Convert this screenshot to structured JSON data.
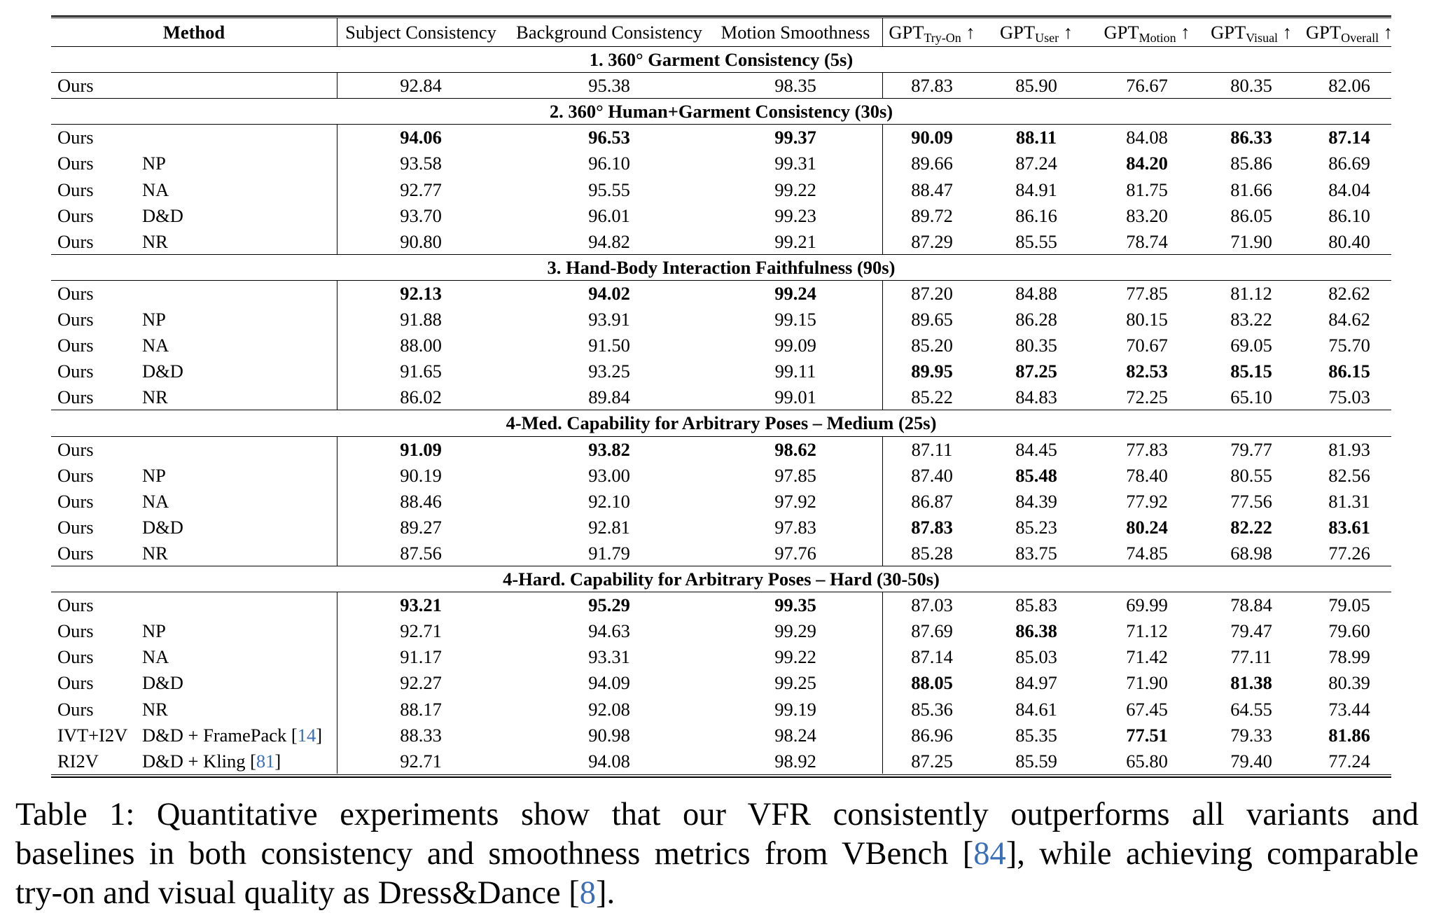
{
  "table": {
    "headers": {
      "method": "Method",
      "subject": "Subject Consistency",
      "background": "Background Consistency",
      "motion_smooth": "Motion Smoothness",
      "gpt_prefix": "GPT",
      "tryon_sub": "Try-On",
      "user_sub": "User",
      "motion_sub": "Motion",
      "visual_sub": "Visual",
      "overall_sub": "Overall",
      "arrow": "↑"
    },
    "sections": [
      {
        "title": "1. 360° Garment Consistency (5s)",
        "rows": [
          {
            "m1": "Ours",
            "m2": "",
            "v": [
              "92.84",
              "95.38",
              "98.35",
              "87.83",
              "85.90",
              "76.67",
              "80.35",
              "82.06"
            ],
            "b": []
          }
        ]
      },
      {
        "title": "2. 360° Human+Garment Consistency (30s)",
        "rows": [
          {
            "m1": "Ours",
            "m2": "",
            "v": [
              "94.06",
              "96.53",
              "99.37",
              "90.09",
              "88.11",
              "84.08",
              "86.33",
              "87.14"
            ],
            "b": [
              0,
              1,
              2,
              3,
              4,
              6,
              7
            ]
          },
          {
            "m1": "Ours",
            "m2": "NP",
            "v": [
              "93.58",
              "96.10",
              "99.31",
              "89.66",
              "87.24",
              "84.20",
              "85.86",
              "86.69"
            ],
            "b": [
              5
            ]
          },
          {
            "m1": "Ours",
            "m2": "NA",
            "v": [
              "92.77",
              "95.55",
              "99.22",
              "88.47",
              "84.91",
              "81.75",
              "81.66",
              "84.04"
            ],
            "b": []
          },
          {
            "m1": "Ours",
            "m2": "D&D",
            "v": [
              "93.70",
              "96.01",
              "99.23",
              "89.72",
              "86.16",
              "83.20",
              "86.05",
              "86.10"
            ],
            "b": []
          },
          {
            "m1": "Ours",
            "m2": "NR",
            "v": [
              "90.80",
              "94.82",
              "99.21",
              "87.29",
              "85.55",
              "78.74",
              "71.90",
              "80.40"
            ],
            "b": []
          }
        ]
      },
      {
        "title": "3. Hand-Body Interaction Faithfulness (90s)",
        "rows": [
          {
            "m1": "Ours",
            "m2": "",
            "v": [
              "92.13",
              "94.02",
              "99.24",
              "87.20",
              "84.88",
              "77.85",
              "81.12",
              "82.62"
            ],
            "b": [
              0,
              1,
              2
            ]
          },
          {
            "m1": "Ours",
            "m2": "NP",
            "v": [
              "91.88",
              "93.91",
              "99.15",
              "89.65",
              "86.28",
              "80.15",
              "83.22",
              "84.62"
            ],
            "b": []
          },
          {
            "m1": "Ours",
            "m2": "NA",
            "v": [
              "88.00",
              "91.50",
              "99.09",
              "85.20",
              "80.35",
              "70.67",
              "69.05",
              "75.70"
            ],
            "b": []
          },
          {
            "m1": "Ours",
            "m2": "D&D",
            "v": [
              "91.65",
              "93.25",
              "99.11",
              "89.95",
              "87.25",
              "82.53",
              "85.15",
              "86.15"
            ],
            "b": [
              3,
              4,
              5,
              6,
              7
            ]
          },
          {
            "m1": "Ours",
            "m2": "NR",
            "v": [
              "86.02",
              "89.84",
              "99.01",
              "85.22",
              "84.83",
              "72.25",
              "65.10",
              "75.03"
            ],
            "b": []
          }
        ]
      },
      {
        "title": "4-Med. Capability for Arbitrary Poses – Medium (25s)",
        "rows": [
          {
            "m1": "Ours",
            "m2": "",
            "v": [
              "91.09",
              "93.82",
              "98.62",
              "87.11",
              "84.45",
              "77.83",
              "79.77",
              "81.93"
            ],
            "b": [
              0,
              1,
              2
            ]
          },
          {
            "m1": "Ours",
            "m2": "NP",
            "v": [
              "90.19",
              "93.00",
              "97.85",
              "87.40",
              "85.48",
              "78.40",
              "80.55",
              "82.56"
            ],
            "b": [
              4
            ]
          },
          {
            "m1": "Ours",
            "m2": "NA",
            "v": [
              "88.46",
              "92.10",
              "97.92",
              "86.87",
              "84.39",
              "77.92",
              "77.56",
              "81.31"
            ],
            "b": []
          },
          {
            "m1": "Ours",
            "m2": "D&D",
            "v": [
              "89.27",
              "92.81",
              "97.83",
              "87.83",
              "85.23",
              "80.24",
              "82.22",
              "83.61"
            ],
            "b": [
              3,
              5,
              6,
              7
            ]
          },
          {
            "m1": "Ours",
            "m2": "NR",
            "v": [
              "87.56",
              "91.79",
              "97.76",
              "85.28",
              "83.75",
              "74.85",
              "68.98",
              "77.26"
            ],
            "b": []
          }
        ]
      },
      {
        "title": "4-Hard. Capability for Arbitrary Poses – Hard (30-50s)",
        "rows": [
          {
            "m1": "Ours",
            "m2": "",
            "v": [
              "93.21",
              "95.29",
              "99.35",
              "87.03",
              "85.83",
              "69.99",
              "78.84",
              "79.05"
            ],
            "b": [
              0,
              1,
              2
            ]
          },
          {
            "m1": "Ours",
            "m2": "NP",
            "v": [
              "92.71",
              "94.63",
              "99.29",
              "87.69",
              "86.38",
              "71.12",
              "79.47",
              "79.60"
            ],
            "b": [
              4
            ]
          },
          {
            "m1": "Ours",
            "m2": "NA",
            "v": [
              "91.17",
              "93.31",
              "99.22",
              "87.14",
              "85.03",
              "71.42",
              "77.11",
              "78.99"
            ],
            "b": []
          },
          {
            "m1": "Ours",
            "m2": "D&D",
            "v": [
              "92.27",
              "94.09",
              "99.25",
              "88.05",
              "84.97",
              "71.90",
              "81.38",
              "80.39"
            ],
            "b": [
              3,
              6
            ]
          },
          {
            "m1": "Ours",
            "m2": "NR",
            "v": [
              "88.17",
              "92.08",
              "99.19",
              "85.36",
              "84.61",
              "67.45",
              "64.55",
              "73.44"
            ],
            "b": []
          },
          {
            "m1": "IVT+I2V",
            "m2": "D&D + FramePack",
            "cite": "14",
            "v": [
              "88.33",
              "90.98",
              "98.24",
              "86.96",
              "85.35",
              "77.51",
              "79.33",
              "81.86"
            ],
            "b": [
              5,
              7
            ]
          },
          {
            "m1": "RI2V",
            "m2": "D&D + Kling",
            "cite": "81",
            "v": [
              "92.71",
              "94.08",
              "98.92",
              "87.25",
              "85.59",
              "65.80",
              "79.40",
              "77.24"
            ],
            "b": []
          }
        ]
      }
    ]
  },
  "caption": {
    "line1": "Table 1: Quantitative experiments show that our VFR consistently outperforms all variants and",
    "line2_a": "baselines in both consistency and smoothness metrics from VBench [",
    "cite_84": "84",
    "line2_b": "], while achieving comparable",
    "line3_a": "try-on and visual quality as Dress&Dance [",
    "cite_8": "8",
    "line3_b": "]."
  }
}
